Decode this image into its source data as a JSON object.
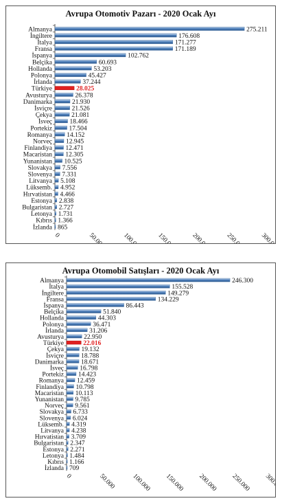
{
  "chart_data": [
    {
      "type": "bar",
      "orientation": "horizontal",
      "title": "Avrupa Otomotiv Pazarı - 2020 Ocak Ayı",
      "highlight_color": "#e02020",
      "bar_color": "#4f81bd",
      "categories": [
        "Almanya",
        "İngiltere",
        "İtalya",
        "Fransa",
        "İspanya",
        "Belçika",
        "Hollanda",
        "Polonya",
        "İrlanda",
        "Türkiye",
        "Avusturya",
        "Danimarka",
        "İsviçre",
        "Çekya",
        "İsveç",
        "Portekiz",
        "Romanya",
        "Norveç",
        "Finlandiya",
        "Macaristan",
        "Yunanistan",
        "Slovakya",
        "Slovenya",
        "Litvanya",
        "Lüksemb.",
        "Hırvatistan",
        "Estonya",
        "Bulgaristan",
        "Letonya",
        "Kıbrıs",
        "İzlanda"
      ],
      "values": [
        275211,
        176608,
        171277,
        171189,
        102762,
        60693,
        53203,
        45427,
        37244,
        28025,
        26378,
        21930,
        21526,
        21081,
        18466,
        17504,
        14152,
        12945,
        12471,
        12305,
        10525,
        7556,
        7331,
        5108,
        4952,
        4466,
        2838,
        2727,
        1731,
        1366,
        865
      ],
      "value_labels": [
        "275.211",
        "176.608",
        "171.277",
        "171.189",
        "102.762",
        "60.693",
        "53.203",
        "45.427",
        "37.244",
        "28.025",
        "26.378",
        "21.930",
        "21.526",
        "21.081",
        "18.466",
        "17.504",
        "14.152",
        "12.945",
        "12.471",
        "12.305",
        "10.525",
        "7.556",
        "7.331",
        "5.108",
        "4.952",
        "4.466",
        "2.838",
        "2.727",
        "1.731",
        "1.366",
        "865"
      ],
      "highlight": "Türkiye",
      "xlim": [
        0,
        300000
      ],
      "xticks": [
        "0",
        "50.000",
        "100.000",
        "150.000",
        "200.000",
        "250.000",
        "300.000"
      ],
      "grid": false
    },
    {
      "type": "bar",
      "orientation": "horizontal",
      "title": "Avrupa Otomobil Satışları - 2020 Ocak Ayı",
      "highlight_color": "#e02020",
      "bar_color": "#4f81bd",
      "categories": [
        "Almanya",
        "İtalya",
        "İngiltere",
        "Fransa",
        "İspanya",
        "Belçika",
        "Hollanda",
        "Polonya",
        "İrlanda",
        "Avusturya",
        "Türkiye",
        "Çekya",
        "İsviçre",
        "Danimarka",
        "İsveç",
        "Portekiz",
        "Romanya",
        "Finlandiya",
        "Macaristan",
        "Yunanistan",
        "Norveç",
        "Slovakya",
        "Slovenya",
        "Lüksemb.",
        "Litvanya",
        "Hırvatistan",
        "Bulgaristan",
        "Estonya",
        "Letonya",
        "Kıbrıs",
        "İzlanda"
      ],
      "values": [
        246300,
        155528,
        149279,
        134229,
        86443,
        51840,
        44303,
        36471,
        31206,
        22950,
        22016,
        19132,
        18788,
        18671,
        16798,
        14423,
        12459,
        10798,
        10113,
        9785,
        9561,
        6733,
        6024,
        4319,
        4238,
        3709,
        2347,
        2271,
        1484,
        1166,
        709
      ],
      "value_labels": [
        "246.300",
        "155.528",
        "149.279",
        "134.229",
        "86.443",
        "51.840",
        "44.303",
        "36.471",
        "31.206",
        "22.950",
        "22.016",
        "19.132",
        "18.788",
        "18.671",
        "16.798",
        "14.423",
        "12.459",
        "10.798",
        "10.113",
        "9.785",
        "9.561",
        "6.733",
        "6.024",
        "4.319",
        "4.238",
        "3.709",
        "2.347",
        "2.271",
        "1.484",
        "1.166",
        "709"
      ],
      "highlight": "Türkiye",
      "xlim": [
        0,
        300000
      ],
      "xticks": [
        "0",
        "50.000",
        "100.000",
        "150.000",
        "200.000",
        "250.000",
        "300.000"
      ],
      "grid": false
    }
  ]
}
